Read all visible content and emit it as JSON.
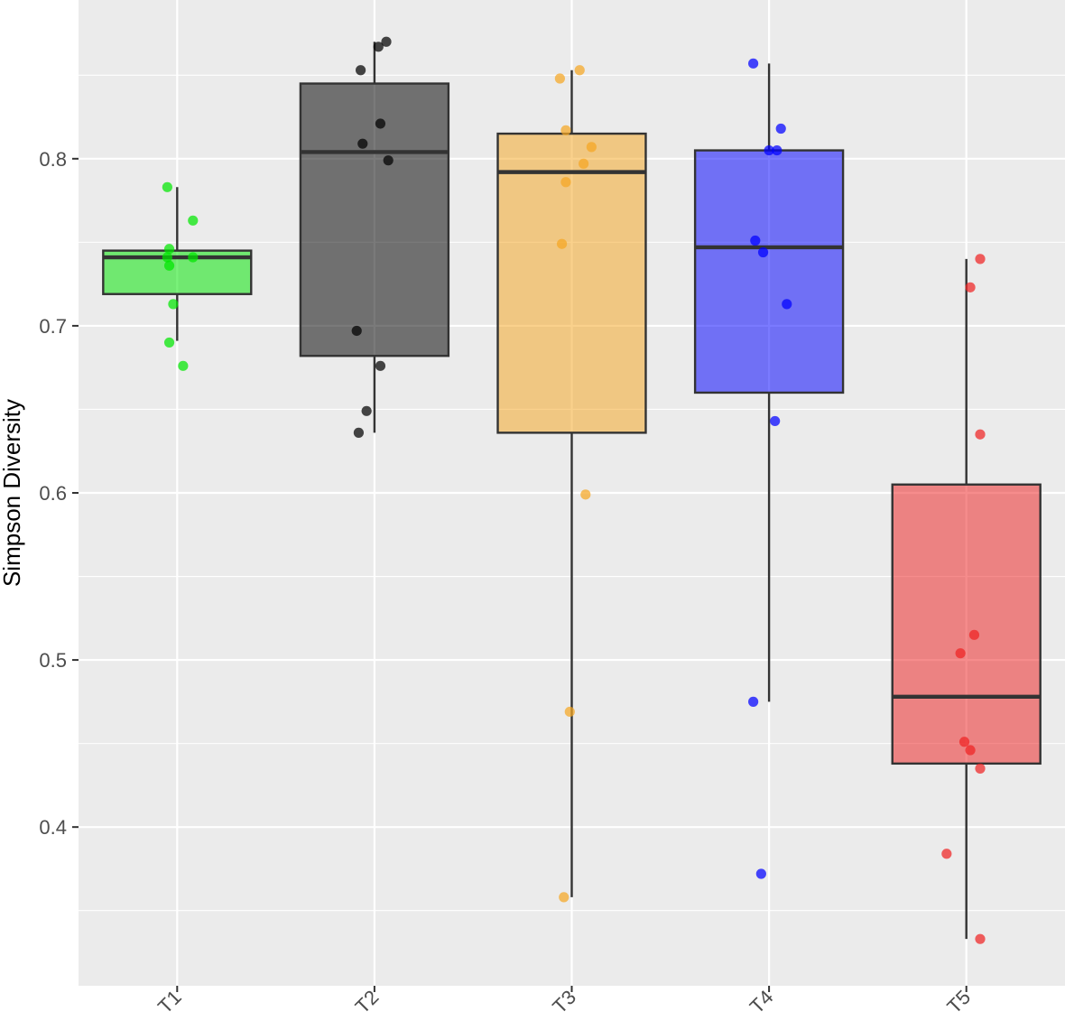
{
  "chart_data": {
    "type": "boxplot",
    "title": "",
    "xlabel": "",
    "ylabel": "Simpson Diversity",
    "ylim": [
      0.305,
      0.895
    ],
    "y_ticks": [
      0.4,
      0.5,
      0.6,
      0.7,
      0.8
    ],
    "y_tick_labels": [
      "0.4",
      "0.5",
      "0.6",
      "0.7",
      "0.8"
    ],
    "y_minor_ticks": [
      0.35,
      0.45,
      0.55,
      0.65,
      0.75,
      0.85
    ],
    "grid": true,
    "legend": "none",
    "panel_background": "#ebebeb",
    "categories": [
      "T1",
      "T2",
      "T3",
      "T4",
      "T5"
    ],
    "boxes": [
      {
        "category": "T1",
        "whisker_low": 0.691,
        "q1": 0.719,
        "median": 0.741,
        "q3": 0.745,
        "whisker_high": 0.783,
        "fill": "#00e600",
        "point_color": "#00e600",
        "points": [
          [
            -0.05,
            0.783
          ],
          [
            0.08,
            0.763
          ],
          [
            -0.04,
            0.746
          ],
          [
            -0.05,
            0.741
          ],
          [
            0.08,
            0.741
          ],
          [
            -0.04,
            0.736
          ],
          [
            -0.02,
            0.713
          ],
          [
            -0.04,
            0.69
          ],
          [
            0.03,
            0.676
          ]
        ]
      },
      {
        "category": "T2",
        "whisker_low": 0.636,
        "q1": 0.682,
        "median": 0.804,
        "q3": 0.845,
        "whisker_high": 0.87,
        "fill": "#000000",
        "point_color": "#000000",
        "points": [
          [
            0.06,
            0.87
          ],
          [
            0.02,
            0.867
          ],
          [
            -0.07,
            0.853
          ],
          [
            0.03,
            0.821
          ],
          [
            -0.06,
            0.809
          ],
          [
            0.07,
            0.799
          ],
          [
            -0.09,
            0.697
          ],
          [
            0.03,
            0.676
          ],
          [
            -0.04,
            0.649
          ],
          [
            -0.08,
            0.636
          ]
        ]
      },
      {
        "category": "T3",
        "whisker_low": 0.358,
        "q1": 0.636,
        "median": 0.792,
        "q3": 0.815,
        "whisker_high": 0.853,
        "fill": "#f5a623",
        "point_color": "#f5a623",
        "points": [
          [
            0.04,
            0.853
          ],
          [
            -0.06,
            0.848
          ],
          [
            -0.03,
            0.817
          ],
          [
            0.1,
            0.807
          ],
          [
            0.06,
            0.797
          ],
          [
            -0.03,
            0.786
          ],
          [
            -0.05,
            0.749
          ],
          [
            0.07,
            0.599
          ],
          [
            -0.01,
            0.469
          ],
          [
            -0.04,
            0.358
          ]
        ]
      },
      {
        "category": "T4",
        "whisker_low": 0.475,
        "q1": 0.66,
        "median": 0.747,
        "q3": 0.805,
        "whisker_high": 0.857,
        "fill": "#0000ff",
        "point_color": "#0000ff",
        "points": [
          [
            -0.08,
            0.857
          ],
          [
            0.06,
            0.818
          ],
          [
            0.0,
            0.805
          ],
          [
            0.04,
            0.805
          ],
          [
            -0.07,
            0.751
          ],
          [
            -0.03,
            0.744
          ],
          [
            0.09,
            0.713
          ],
          [
            0.03,
            0.643
          ],
          [
            -0.08,
            0.475
          ],
          [
            -0.04,
            0.372
          ]
        ]
      },
      {
        "category": "T5",
        "whisker_low": 0.333,
        "q1": 0.438,
        "median": 0.478,
        "q3": 0.605,
        "whisker_high": 0.74,
        "fill": "#ee2222",
        "point_color": "#ee2222",
        "points": [
          [
            0.07,
            0.74
          ],
          [
            0.02,
            0.723
          ],
          [
            0.07,
            0.635
          ],
          [
            0.04,
            0.515
          ],
          [
            -0.03,
            0.504
          ],
          [
            -0.01,
            0.451
          ],
          [
            0.02,
            0.446
          ],
          [
            0.07,
            0.435
          ],
          [
            -0.1,
            0.384
          ],
          [
            0.07,
            0.333
          ]
        ]
      }
    ]
  }
}
